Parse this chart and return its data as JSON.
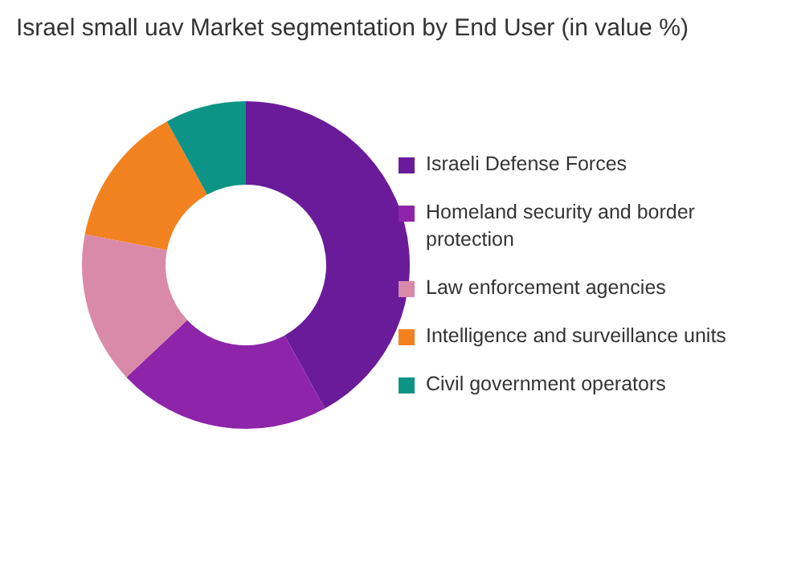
{
  "chart_data": {
    "type": "donut",
    "title": "Israel small uav Market segmentation by End User (in value %)",
    "categories": [
      "Israeli Defense Forces",
      "Homeland security and border protection",
      "Law enforcement agencies",
      "Intelligence and surveillance units",
      "Civil government operators"
    ],
    "values": [
      42,
      21,
      15,
      14,
      8
    ],
    "colors": [
      "#6a1b9a",
      "#8e24aa",
      "#d98aa8",
      "#f2811f",
      "#0e9486"
    ],
    "legend": "right"
  }
}
